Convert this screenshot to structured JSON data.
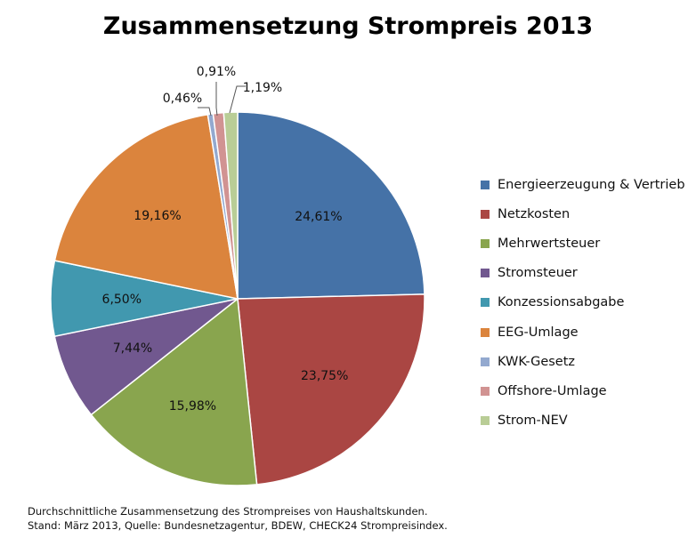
{
  "chart_data": {
    "type": "pie",
    "title": "Zusammensetzung Strompreis 2013",
    "slices": [
      {
        "name": "Energieerzeugung & Vertrieb",
        "value": 24.61,
        "label": "24,61%",
        "color": "#4572A7"
      },
      {
        "name": "Netzkosten",
        "value": 23.75,
        "label": "23,75%",
        "color": "#AA4643"
      },
      {
        "name": "Mehrwertsteuer",
        "value": 15.98,
        "label": "15,98%",
        "color": "#89A54E"
      },
      {
        "name": "Stromsteuer",
        "value": 7.44,
        "label": "7,44%",
        "color": "#71588F"
      },
      {
        "name": "Konzessionsabgabe",
        "value": 6.5,
        "label": "6,50%",
        "color": "#4198AF"
      },
      {
        "name": "EEG-Umlage",
        "value": 19.16,
        "label": "19,16%",
        "color": "#DB843D"
      },
      {
        "name": "KWK-Gesetz",
        "value": 0.46,
        "label": "0,46%",
        "color": "#93A9CF"
      },
      {
        "name": "Offshore-Umlage",
        "value": 0.91,
        "label": "0,91%",
        "color": "#D19392"
      },
      {
        "name": "Strom-NEV",
        "value": 1.19,
        "label": "1,19%",
        "color": "#B9CD96"
      }
    ],
    "legend_position": "right"
  },
  "footnote": {
    "line1": "Durchschnittliche Zusammensetzung des Strompreises von Haushaltskunden.",
    "line2": "Stand: März 2013, Quelle: Bundesnetzagentur, BDEW, CHECK24 Strompreisindex."
  }
}
